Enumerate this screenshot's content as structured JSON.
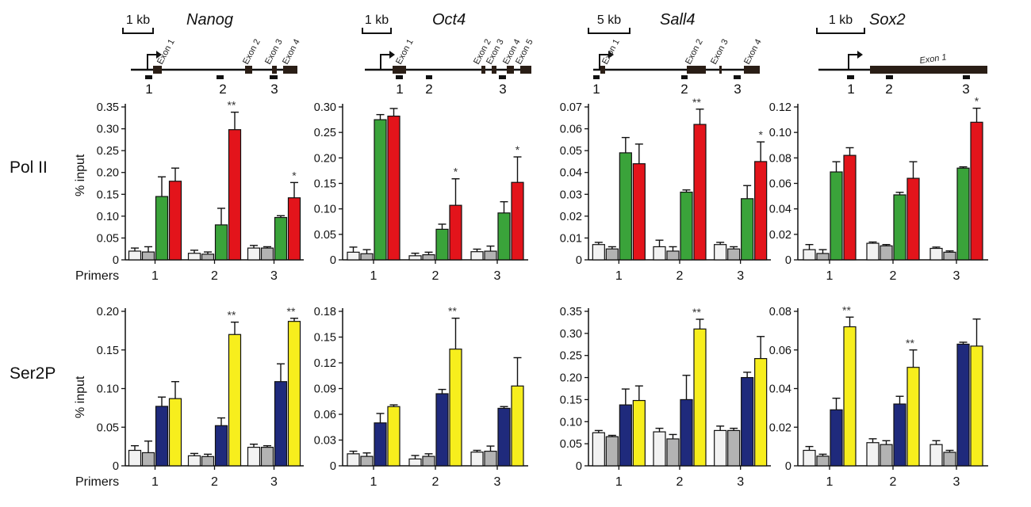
{
  "figure": {
    "row_labels": [
      "Pol II",
      "Ser2P"
    ],
    "primers_label": "Primers",
    "y_axis_label": "% input"
  },
  "genes": [
    {
      "name": "Nanog",
      "scale": "1 kb",
      "exon_labels": [
        "Exon 1",
        "Exon 2",
        "Exon 3",
        "Exon 4"
      ],
      "primer_labels": [
        "1",
        "2",
        "3"
      ]
    },
    {
      "name": "Oct4",
      "scale": "1 kb",
      "exon_labels": [
        "Exon 1",
        "Exon 2",
        "Exon 3",
        "Exon 4",
        "Exon 5"
      ],
      "primer_labels": [
        "1",
        "2",
        "3"
      ]
    },
    {
      "name": "Sall4",
      "scale": "5 kb",
      "exon_labels": [
        "Exon 1",
        "Exon 2",
        "Exon 3",
        "Exon 4"
      ],
      "primer_labels": [
        "1",
        "2",
        "3"
      ]
    },
    {
      "name": "Sox2",
      "scale": "1 kb",
      "exon_labels": [
        "Exon 1"
      ],
      "primer_labels": [
        "1",
        "2",
        "3"
      ]
    }
  ],
  "colors": {
    "white": "#f2f2f2",
    "gray": "#b3b3b3",
    "green": "#3aa33a",
    "red": "#e3141b",
    "blue": "#1f2a7c",
    "yellow": "#f7ee1d"
  },
  "chart_data": [
    {
      "type": "bar",
      "gene": "Nanog",
      "row": "Pol II",
      "categories": [
        "1",
        "2",
        "3"
      ],
      "xlabel": "",
      "ylabel": "% input",
      "ylim": [
        0,
        0.35
      ],
      "yticks": [
        "0",
        "0.05",
        "0.10",
        "0.15",
        "0.20",
        "0.25",
        "0.30",
        "0.35"
      ],
      "bar_colors": [
        "white",
        "gray",
        "green",
        "red"
      ],
      "values": [
        [
          0.02,
          0.018,
          0.145,
          0.18
        ],
        [
          0.015,
          0.013,
          0.08,
          0.298
        ],
        [
          0.027,
          0.027,
          0.097,
          0.142
        ]
      ],
      "errors": [
        [
          0.007,
          0.012,
          0.045,
          0.03
        ],
        [
          0.007,
          0.005,
          0.038,
          0.04
        ],
        [
          0.006,
          0.003,
          0.004,
          0.035
        ]
      ],
      "significance": [
        "",
        "**",
        "*"
      ]
    },
    {
      "type": "bar",
      "gene": "Oct4",
      "row": "Pol II",
      "categories": [
        "1",
        "2",
        "3"
      ],
      "xlabel": "",
      "ylabel": "% input",
      "ylim": [
        0,
        0.3
      ],
      "yticks": [
        "0",
        "0.05",
        "0.10",
        "0.15",
        "0.20",
        "0.25",
        "0.30"
      ],
      "bar_colors": [
        "white",
        "gray",
        "green",
        "red"
      ],
      "values": [
        [
          0.015,
          0.012,
          0.275,
          0.282
        ],
        [
          0.008,
          0.01,
          0.06,
          0.107
        ],
        [
          0.016,
          0.017,
          0.092,
          0.152
        ]
      ],
      "errors": [
        [
          0.01,
          0.008,
          0.01,
          0.015
        ],
        [
          0.005,
          0.005,
          0.01,
          0.052
        ],
        [
          0.005,
          0.01,
          0.022,
          0.05
        ]
      ],
      "significance": [
        "",
        "*",
        "*"
      ]
    },
    {
      "type": "bar",
      "gene": "Sall4",
      "row": "Pol II",
      "categories": [
        "1",
        "2",
        "3"
      ],
      "xlabel": "",
      "ylabel": "% input",
      "ylim": [
        0,
        0.07
      ],
      "yticks": [
        "0",
        "0.01",
        "0.02",
        "0.03",
        "0.04",
        "0.05",
        "0.06",
        "0.07"
      ],
      "bar_colors": [
        "white",
        "gray",
        "green",
        "red"
      ],
      "values": [
        [
          0.007,
          0.005,
          0.049,
          0.044
        ],
        [
          0.006,
          0.004,
          0.031,
          0.062
        ],
        [
          0.007,
          0.005,
          0.028,
          0.045
        ]
      ],
      "errors": [
        [
          0.001,
          0.001,
          0.007,
          0.009
        ],
        [
          0.003,
          0.002,
          0.001,
          0.007
        ],
        [
          0.001,
          0.001,
          0.006,
          0.009
        ]
      ],
      "significance": [
        "",
        "**",
        "*"
      ]
    },
    {
      "type": "bar",
      "gene": "Sox2",
      "row": "Pol II",
      "categories": [
        "1",
        "2",
        "3"
      ],
      "xlabel": "",
      "ylabel": "% input",
      "ylim": [
        0,
        0.12
      ],
      "yticks": [
        "0",
        "0.02",
        "0.04",
        "0.06",
        "0.08",
        "0.10",
        "0.12"
      ],
      "bar_colors": [
        "white",
        "gray",
        "green",
        "red"
      ],
      "values": [
        [
          0.008,
          0.005,
          0.069,
          0.082
        ],
        [
          0.013,
          0.011,
          0.051,
          0.064
        ],
        [
          0.009,
          0.006,
          0.072,
          0.108
        ]
      ],
      "errors": [
        [
          0.004,
          0.003,
          0.008,
          0.006
        ],
        [
          0.001,
          0.001,
          0.002,
          0.013
        ],
        [
          0.001,
          0.001,
          0.001,
          0.011
        ]
      ],
      "significance": [
        "",
        "",
        "*"
      ]
    },
    {
      "type": "bar",
      "gene": "Nanog",
      "row": "Ser2P",
      "categories": [
        "1",
        "2",
        "3"
      ],
      "xlabel": "",
      "ylabel": "% input",
      "ylim": [
        0,
        0.2
      ],
      "yticks": [
        "0",
        "0.05",
        "0.10",
        "0.15",
        "0.20"
      ],
      "bar_colors": [
        "white",
        "gray",
        "blue",
        "yellow"
      ],
      "values": [
        [
          0.02,
          0.017,
          0.077,
          0.087
        ],
        [
          0.013,
          0.012,
          0.052,
          0.17
        ],
        [
          0.024,
          0.024,
          0.109,
          0.187
        ]
      ],
      "errors": [
        [
          0.006,
          0.015,
          0.012,
          0.022
        ],
        [
          0.003,
          0.003,
          0.01,
          0.016
        ],
        [
          0.004,
          0.002,
          0.023,
          0.004
        ]
      ],
      "significance": [
        "",
        "**",
        "**"
      ]
    },
    {
      "type": "bar",
      "gene": "Oct4",
      "row": "Ser2P",
      "categories": [
        "1",
        "2",
        "3"
      ],
      "xlabel": "",
      "ylabel": "% input",
      "ylim": [
        0,
        0.18
      ],
      "yticks": [
        "0",
        "0.03",
        "0.06",
        "0.09",
        "0.12",
        "0.15",
        "0.18"
      ],
      "bar_colors": [
        "white",
        "gray",
        "blue",
        "yellow"
      ],
      "values": [
        [
          0.014,
          0.011,
          0.05,
          0.069
        ],
        [
          0.008,
          0.011,
          0.084,
          0.136
        ],
        [
          0.016,
          0.017,
          0.067,
          0.093
        ]
      ],
      "errors": [
        [
          0.003,
          0.004,
          0.011,
          0.002
        ],
        [
          0.004,
          0.003,
          0.005,
          0.036
        ],
        [
          0.002,
          0.006,
          0.002,
          0.033
        ]
      ],
      "significance": [
        "",
        "**",
        ""
      ]
    },
    {
      "type": "bar",
      "gene": "Sall4",
      "row": "Ser2P",
      "categories": [
        "1",
        "2",
        "3"
      ],
      "xlabel": "",
      "ylabel": "% input",
      "ylim": [
        0,
        0.35
      ],
      "yticks": [
        "0",
        "0.05",
        "0.10",
        "0.15",
        "0.20",
        "0.25",
        "0.30",
        "0.35"
      ],
      "bar_colors": [
        "white",
        "gray",
        "blue",
        "yellow"
      ],
      "values": [
        [
          0.075,
          0.066,
          0.138,
          0.148
        ],
        [
          0.077,
          0.061,
          0.15,
          0.31
        ],
        [
          0.08,
          0.08,
          0.2,
          0.243
        ]
      ],
      "errors": [
        [
          0.005,
          0.003,
          0.036,
          0.033
        ],
        [
          0.008,
          0.01,
          0.055,
          0.022
        ],
        [
          0.01,
          0.005,
          0.012,
          0.05
        ]
      ],
      "significance": [
        "",
        "**",
        ""
      ]
    },
    {
      "type": "bar",
      "gene": "Sox2",
      "row": "Ser2P",
      "categories": [
        "1",
        "2",
        "3"
      ],
      "xlabel": "",
      "ylabel": "% input",
      "ylim": [
        0,
        0.08
      ],
      "yticks": [
        "0",
        "0.02",
        "0.04",
        "0.06",
        "0.08"
      ],
      "bar_colors": [
        "white",
        "gray",
        "blue",
        "yellow"
      ],
      "values": [
        [
          0.008,
          0.005,
          0.029,
          0.072
        ],
        [
          0.012,
          0.011,
          0.032,
          0.051
        ],
        [
          0.011,
          0.007,
          0.063,
          0.062
        ]
      ],
      "errors": [
        [
          0.002,
          0.001,
          0.006,
          0.005
        ],
        [
          0.002,
          0.002,
          0.004,
          0.009
        ],
        [
          0.002,
          0.001,
          0.001,
          0.014
        ]
      ],
      "significance": [
        "**",
        "**",
        ""
      ]
    }
  ]
}
